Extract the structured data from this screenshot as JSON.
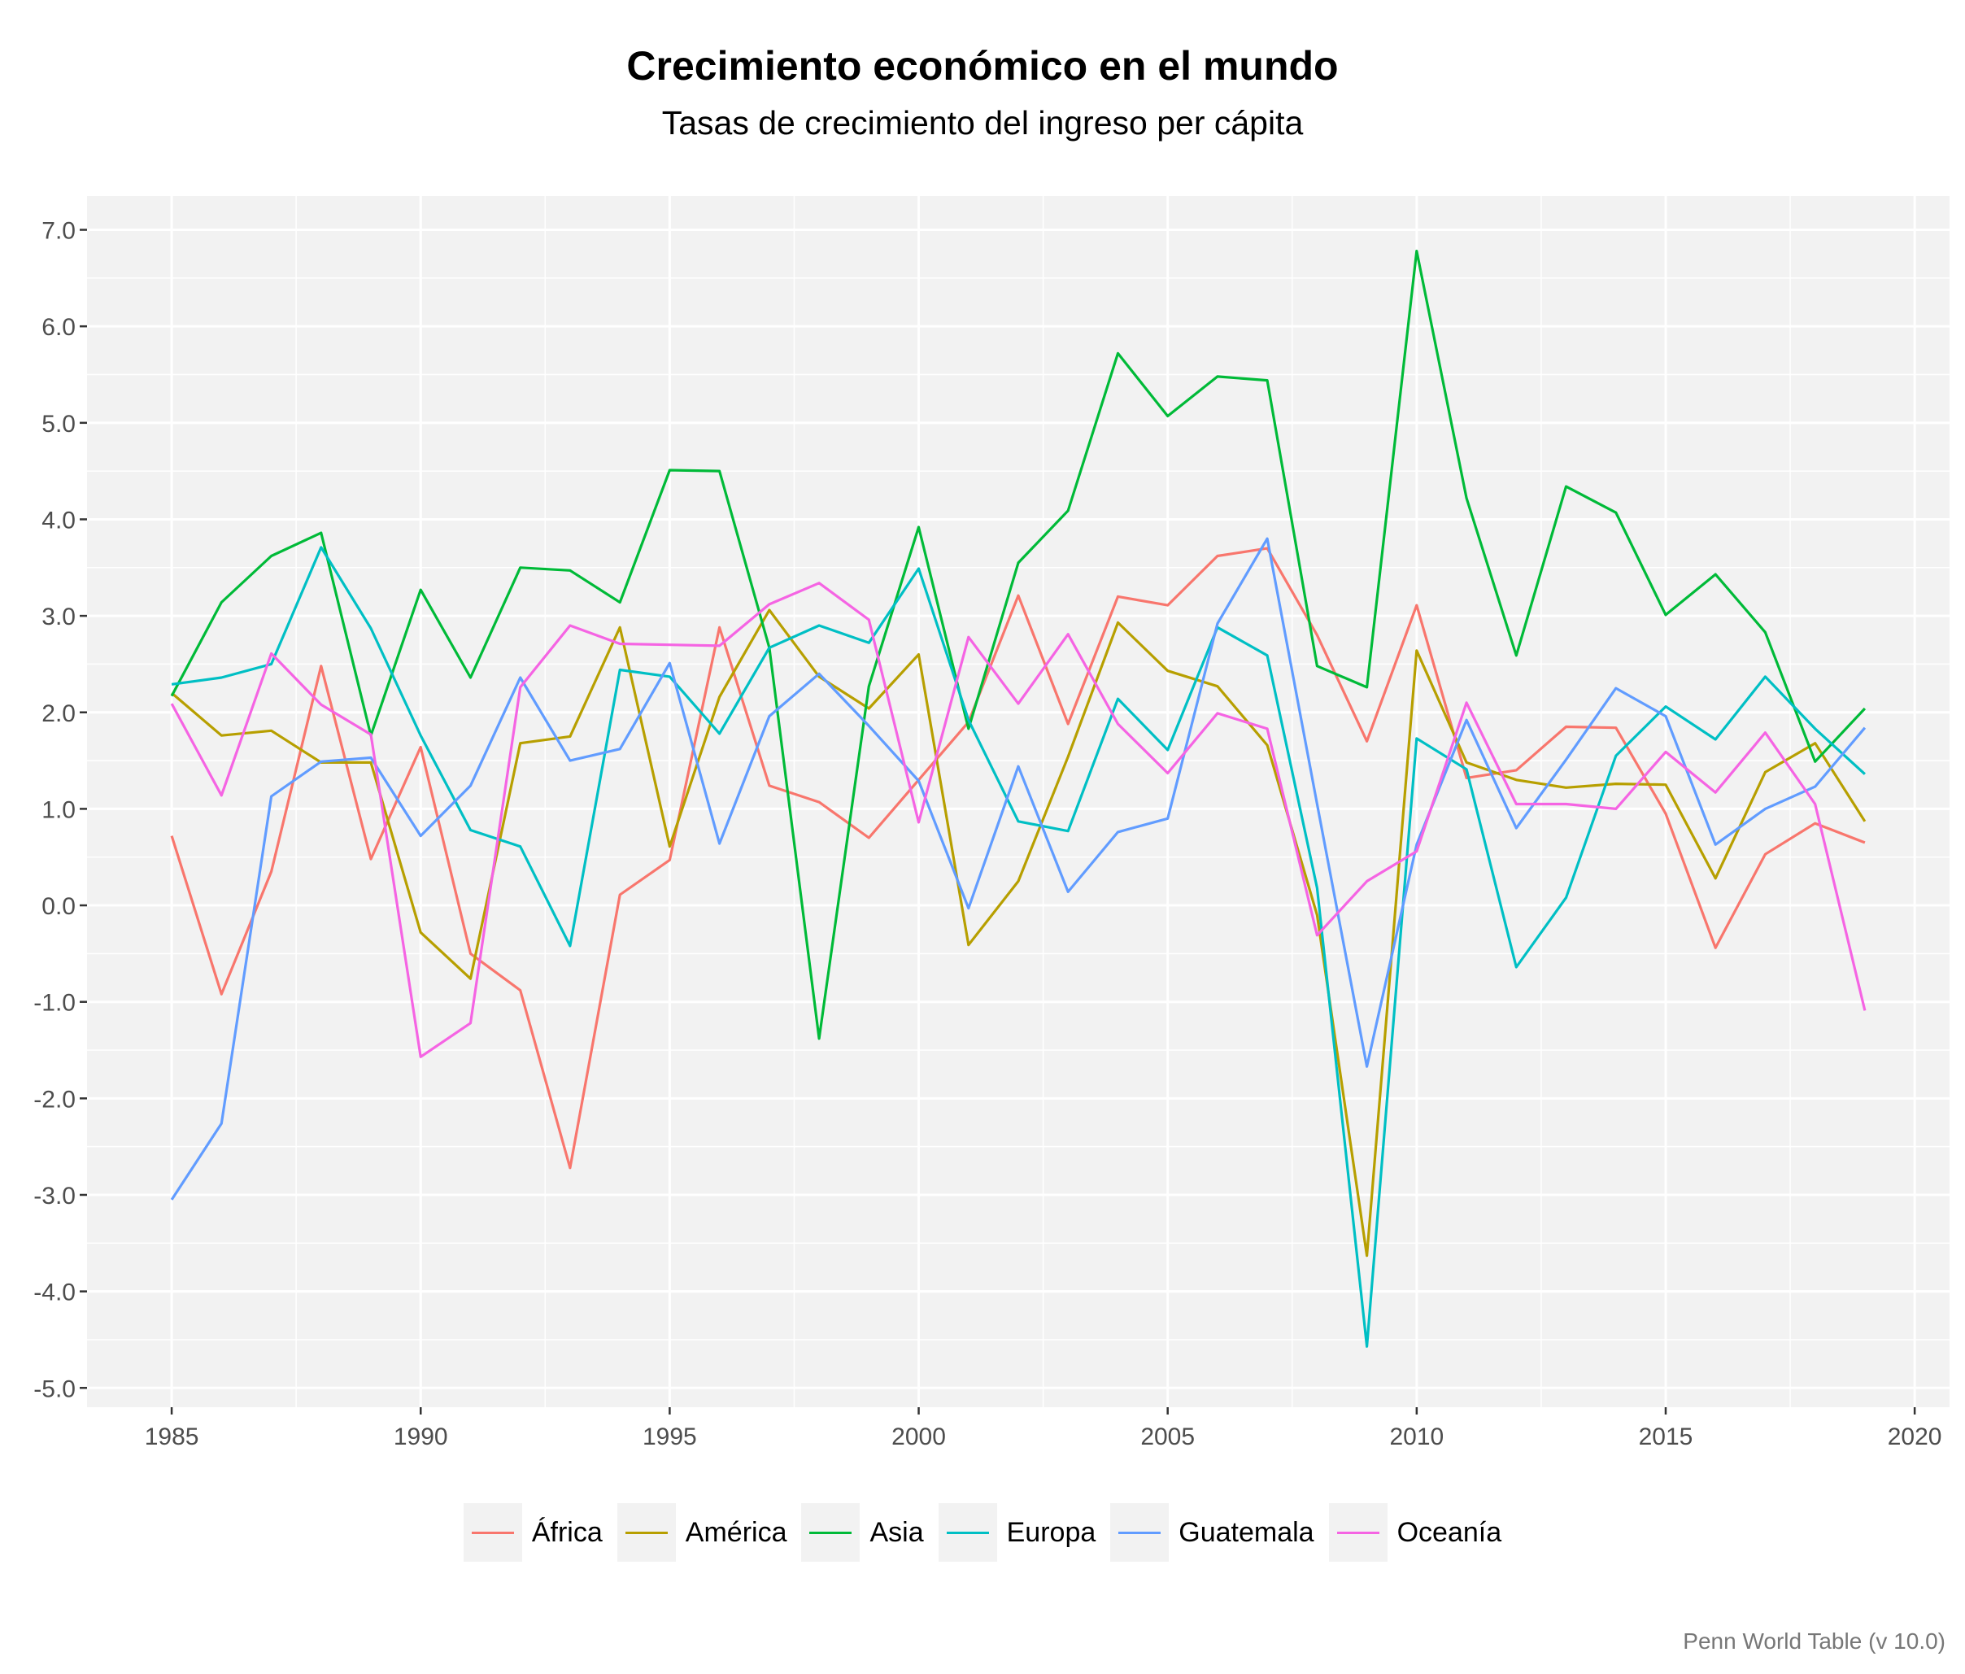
{
  "chart_data": {
    "type": "line",
    "title": "Crecimiento económico en el mundo",
    "subtitle": "Tasas de crecimiento del ingreso per cápita",
    "caption": "Penn World Table (v 10.0)",
    "xlabel": "",
    "ylabel": "",
    "xlim": [
      1983.3,
      2020.7
    ],
    "ylim": [
      -5.2,
      7.35
    ],
    "x_ticks": [
      1985,
      1990,
      1995,
      2000,
      2005,
      2010,
      2015,
      2020
    ],
    "x_tick_labels": [
      "1985",
      "1990",
      "1995",
      "2000",
      "2005",
      "2010",
      "2015",
      "2020"
    ],
    "y_ticks": [
      -5,
      -4,
      -3,
      -2,
      -1,
      0,
      1,
      2,
      3,
      4,
      5,
      6,
      7
    ],
    "y_tick_labels": [
      "-5.0",
      "-4.0",
      "-3.0",
      "-2.0",
      "-1.0",
      "0.0",
      "1.0",
      "2.0",
      "3.0",
      "4.0",
      "5.0",
      "6.0",
      "7.0"
    ],
    "grid": true,
    "legend_position": "bottom",
    "x": [
      1985,
      1986,
      1987,
      1988,
      1989,
      1990,
      1991,
      1992,
      1993,
      1994,
      1995,
      1996,
      1997,
      1998,
      1999,
      2000,
      2001,
      2002,
      2003,
      2004,
      2005,
      2006,
      2007,
      2008,
      2009,
      2010,
      2011,
      2012,
      2013,
      2014,
      2015,
      2016,
      2017,
      2018,
      2019
    ],
    "series": [
      {
        "name": "África",
        "color": "#F8766D",
        "values": [
          0.72,
          -0.92,
          0.35,
          2.48,
          0.48,
          1.64,
          -0.5,
          -0.88,
          -2.72,
          0.11,
          0.47,
          2.88,
          1.24,
          1.07,
          0.7,
          1.3,
          1.9,
          3.21,
          1.88,
          3.2,
          3.11,
          3.62,
          3.7,
          2.8,
          1.7,
          3.11,
          1.32,
          1.4,
          1.85,
          1.84,
          0.95,
          -0.44,
          0.53,
          0.85,
          0.65
        ]
      },
      {
        "name": "América",
        "color": "#B79F00",
        "values": [
          2.2,
          1.76,
          1.81,
          1.48,
          1.48,
          -0.28,
          -0.76,
          1.68,
          1.75,
          2.88,
          0.61,
          2.16,
          3.06,
          2.37,
          2.04,
          2.6,
          -0.41,
          0.25,
          1.54,
          2.93,
          2.43,
          2.27,
          1.66,
          -0.1,
          -3.63,
          2.64,
          1.48,
          1.3,
          1.22,
          1.26,
          1.25,
          0.28,
          1.38,
          1.68,
          0.87
        ]
      },
      {
        "name": "Asia",
        "color": "#00BA38",
        "values": [
          2.17,
          3.14,
          3.62,
          3.86,
          1.76,
          3.27,
          2.36,
          3.5,
          3.47,
          3.14,
          4.51,
          4.5,
          2.67,
          -1.38,
          2.27,
          3.92,
          1.83,
          3.55,
          4.09,
          5.72,
          5.07,
          5.48,
          5.44,
          2.48,
          2.26,
          6.78,
          4.22,
          2.59,
          4.34,
          4.07,
          3.01,
          3.43,
          2.83,
          1.49,
          2.04
        ]
      },
      {
        "name": "Europa",
        "color": "#00BFC4",
        "values": [
          2.29,
          2.36,
          2.5,
          3.71,
          2.87,
          1.76,
          0.78,
          0.61,
          -0.42,
          2.44,
          2.37,
          1.78,
          2.67,
          2.9,
          2.72,
          3.49,
          1.92,
          0.87,
          0.77,
          2.14,
          1.61,
          2.88,
          2.59,
          0.18,
          -4.57,
          1.73,
          1.41,
          -0.64,
          0.08,
          1.55,
          2.06,
          1.72,
          2.37,
          1.83,
          1.36
        ]
      },
      {
        "name": "Guatemala",
        "color": "#619CFF",
        "values": [
          -3.05,
          -2.26,
          1.13,
          1.49,
          1.53,
          0.72,
          1.24,
          2.36,
          1.5,
          1.62,
          2.51,
          0.64,
          1.96,
          2.4,
          1.86,
          1.29,
          -0.03,
          1.44,
          0.14,
          0.76,
          0.9,
          2.92,
          3.8,
          1.05,
          -1.67,
          0.63,
          1.92,
          0.8,
          1.51,
          2.25,
          1.96,
          0.63,
          1.0,
          1.23,
          1.84
        ]
      },
      {
        "name": "Oceanía",
        "color": "#F564E3",
        "values": [
          2.09,
          1.14,
          2.61,
          2.08,
          1.77,
          -1.57,
          -1.22,
          2.26,
          2.9,
          2.71,
          2.7,
          2.69,
          3.12,
          3.34,
          2.96,
          0.86,
          2.78,
          2.09,
          2.81,
          1.88,
          1.37,
          1.99,
          1.83,
          -0.31,
          0.25,
          0.56,
          2.1,
          1.05,
          1.05,
          1.0,
          1.59,
          1.17,
          1.79,
          1.05,
          -1.09
        ]
      }
    ]
  }
}
